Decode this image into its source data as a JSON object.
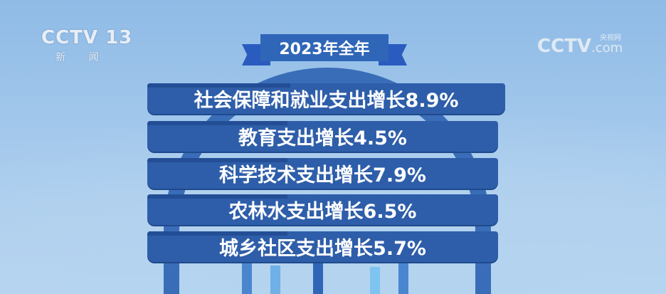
{
  "channel_logo": {
    "brand": "CCTV",
    "number": "13",
    "name": "新 闻"
  },
  "watermark": {
    "brand": "CCTV",
    "site_cn": "央视网",
    "suffix": ".com"
  },
  "ribbon": {
    "title": "2023年全年"
  },
  "items": [
    {
      "label": "社会保障和就业支出增长8.9%",
      "growth_percent": 8.9
    },
    {
      "label": "教育支出增长4.5%",
      "growth_percent": 4.5
    },
    {
      "label": "科学技术支出增长7.9%",
      "growth_percent": 7.9
    },
    {
      "label": "农林水支出增长6.5%",
      "growth_percent": 6.5
    },
    {
      "label": "城乡社区支出增长5.7%",
      "growth_percent": 5.7
    }
  ],
  "colors": {
    "background": "#a3c8ec",
    "bar": "#2e5ea9",
    "ribbon": "#2f66b8"
  }
}
